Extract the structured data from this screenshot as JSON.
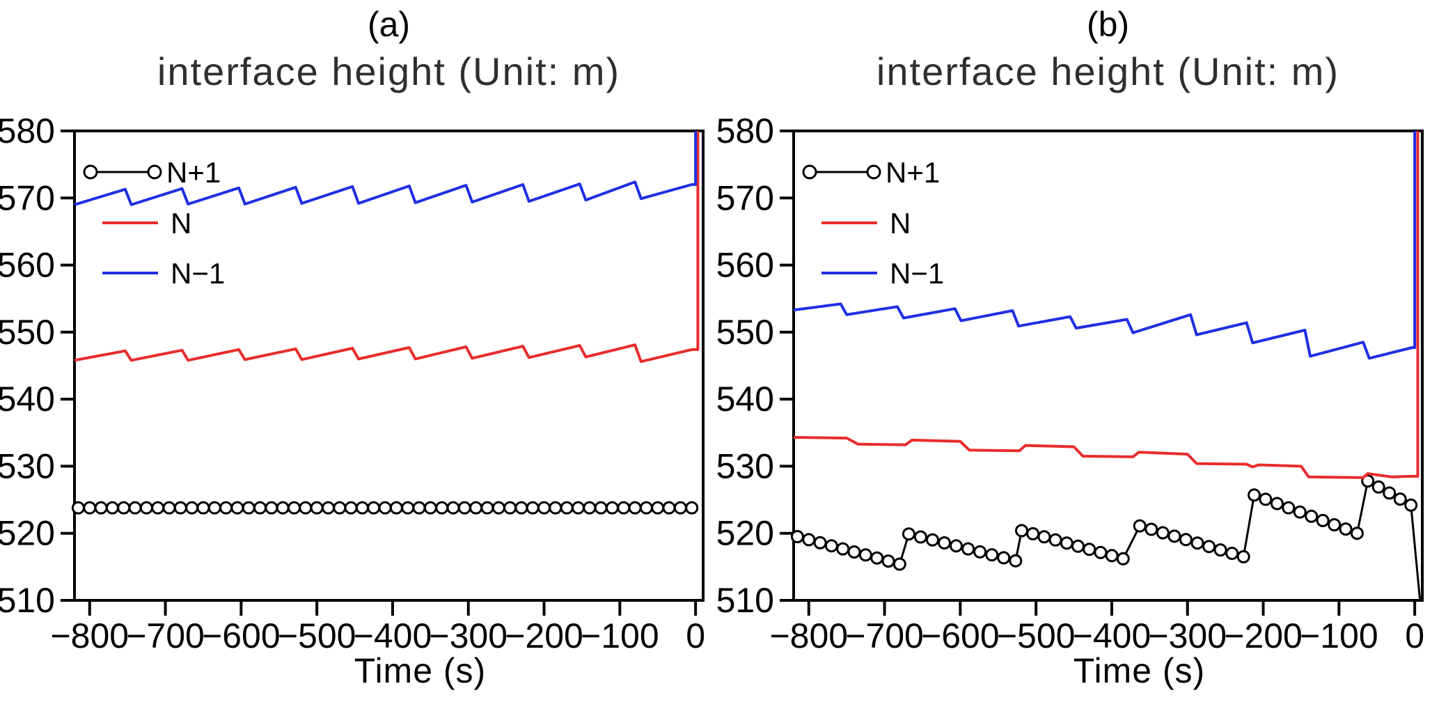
{
  "figure_background": "#ffffff",
  "text_color": "#000000",
  "title_color": "#2f2f2f",
  "chart_data": [
    {
      "type": "line",
      "panel_label": "(a)",
      "title": "interface height (Unit: m)",
      "xlabel": "Time (s)",
      "xlim": [
        -820,
        10
      ],
      "ylim": [
        510,
        580
      ],
      "x_ticks": [
        -800,
        -700,
        -600,
        -500,
        -400,
        -300,
        -200,
        -100,
        0
      ],
      "y_ticks": [
        510,
        520,
        530,
        540,
        550,
        560,
        570,
        580
      ],
      "grid": false,
      "legend_position": "top-left-inside",
      "series": [
        {
          "name": "N+1",
          "color": "#000000",
          "line_width": 3,
          "marker": "open-circle",
          "marker_radius": 8,
          "marker_step_s": 15,
          "legend_sample": "line-with-end-circles",
          "segments": [
            {
              "t": [
                -815,
                -5
              ],
              "h": [
                523.8,
                523.8
              ]
            }
          ],
          "tail_points": []
        },
        {
          "name": "N",
          "color": "#e82c2c",
          "line_width": 4,
          "marker": "none",
          "legend_sample": "line",
          "points": [
            [
              -820,
              545.8
            ],
            [
              -753,
              547.2
            ],
            [
              -745,
              545.8
            ],
            [
              -678,
              547.3
            ],
            [
              -670,
              545.8
            ],
            [
              -603,
              547.4
            ],
            [
              -595,
              545.9
            ],
            [
              -528,
              547.5
            ],
            [
              -520,
              545.9
            ],
            [
              -453,
              547.6
            ],
            [
              -445,
              546.0
            ],
            [
              -378,
              547.7
            ],
            [
              -370,
              546.0
            ],
            [
              -303,
              547.8
            ],
            [
              -295,
              546.1
            ],
            [
              -228,
              547.9
            ],
            [
              -220,
              546.2
            ],
            [
              -153,
              548.0
            ],
            [
              -145,
              546.3
            ],
            [
              -80,
              548.1
            ],
            [
              -72,
              545.6
            ],
            [
              -5,
              547.4
            ],
            [
              3,
              547.4
            ],
            [
              3,
              580
            ]
          ]
        },
        {
          "name": "N-1",
          "color": "#1f2fe3",
          "line_width": 4,
          "marker": "none",
          "legend_sample": "line",
          "points": [
            [
              -820,
              569.0
            ],
            [
              -753,
              571.3
            ],
            [
              -745,
              569.0
            ],
            [
              -678,
              571.4
            ],
            [
              -670,
              569.1
            ],
            [
              -603,
              571.5
            ],
            [
              -595,
              569.1
            ],
            [
              -528,
              571.6
            ],
            [
              -520,
              569.2
            ],
            [
              -453,
              571.7
            ],
            [
              -445,
              569.2
            ],
            [
              -378,
              571.8
            ],
            [
              -370,
              569.3
            ],
            [
              -303,
              571.9
            ],
            [
              -295,
              569.4
            ],
            [
              -228,
              572.0
            ],
            [
              -220,
              569.5
            ],
            [
              -153,
              572.1
            ],
            [
              -145,
              569.7
            ],
            [
              -80,
              572.4
            ],
            [
              -72,
              569.9
            ],
            [
              -5,
              572.0
            ],
            [
              0,
              572.0
            ],
            [
              0,
              580
            ]
          ]
        }
      ]
    },
    {
      "type": "line",
      "panel_label": "(b)",
      "title": "interface height (Unit: m)",
      "xlabel": "Time (s)",
      "xlim": [
        -820,
        10
      ],
      "ylim": [
        510,
        580
      ],
      "x_ticks": [
        -800,
        -700,
        -600,
        -500,
        -400,
        -300,
        -200,
        -100,
        0
      ],
      "y_ticks": [
        510,
        520,
        530,
        540,
        550,
        560,
        570,
        580
      ],
      "grid": false,
      "legend_position": "top-left-inside",
      "series": [
        {
          "name": "N+1",
          "color": "#000000",
          "line_width": 3,
          "marker": "open-circle",
          "marker_radius": 8,
          "marker_step_s": 15,
          "legend_sample": "line-with-end-circles",
          "segments": [
            {
              "t": [
                -815,
                -680
              ],
              "h": [
                519.5,
                515.4
              ]
            },
            {
              "t": [
                -668,
                -527
              ],
              "h": [
                519.9,
                515.9
              ]
            },
            {
              "t": [
                -519,
                -385
              ],
              "h": [
                520.4,
                516.2
              ]
            },
            {
              "t": [
                -363,
                -226
              ],
              "h": [
                521.1,
                516.5
              ]
            },
            {
              "t": [
                -212,
                -76
              ],
              "h": [
                525.7,
                520.0
              ]
            },
            {
              "t": [
                -62,
                -5
              ],
              "h": [
                527.8,
                524.2
              ]
            }
          ],
          "tail_points": [
            [
              -5,
              524.2
            ],
            [
              7,
              510
            ]
          ]
        },
        {
          "name": "N",
          "color": "#e82c2c",
          "line_width": 4,
          "marker": "none",
          "legend_sample": "line",
          "points": [
            [
              -820,
              534.3
            ],
            [
              -750,
              534.2
            ],
            [
              -735,
              533.3
            ],
            [
              -672,
              533.2
            ],
            [
              -664,
              533.9
            ],
            [
              -600,
              533.7
            ],
            [
              -588,
              532.4
            ],
            [
              -522,
              532.3
            ],
            [
              -514,
              533.1
            ],
            [
              -450,
              532.9
            ],
            [
              -438,
              531.5
            ],
            [
              -372,
              531.4
            ],
            [
              -364,
              532.1
            ],
            [
              -300,
              531.8
            ],
            [
              -288,
              530.4
            ],
            [
              -222,
              530.3
            ],
            [
              -214,
              529.9
            ],
            [
              -206,
              530.2
            ],
            [
              -150,
              530.0
            ],
            [
              -140,
              528.4
            ],
            [
              -68,
              528.3
            ],
            [
              -62,
              528.9
            ],
            [
              -30,
              528.4
            ],
            [
              -5,
              528.5
            ],
            [
              4,
              528.5
            ],
            [
              4,
              580
            ]
          ]
        },
        {
          "name": "N-1",
          "color": "#1f2fe3",
          "line_width": 4,
          "marker": "none",
          "legend_sample": "line",
          "points": [
            [
              -820,
              553.3
            ],
            [
              -758,
              554.2
            ],
            [
              -750,
              552.6
            ],
            [
              -683,
              553.8
            ],
            [
              -675,
              552.1
            ],
            [
              -607,
              553.5
            ],
            [
              -599,
              551.7
            ],
            [
              -531,
              553.2
            ],
            [
              -523,
              550.9
            ],
            [
              -455,
              552.3
            ],
            [
              -447,
              550.6
            ],
            [
              -380,
              551.9
            ],
            [
              -372,
              549.9
            ],
            [
              -296,
              552.6
            ],
            [
              -288,
              549.6
            ],
            [
              -222,
              551.4
            ],
            [
              -214,
              548.4
            ],
            [
              -145,
              550.3
            ],
            [
              -138,
              546.4
            ],
            [
              -68,
              548.5
            ],
            [
              -60,
              546.1
            ],
            [
              -3,
              547.7
            ],
            [
              0,
              547.7
            ],
            [
              0,
              580
            ]
          ]
        }
      ]
    }
  ]
}
